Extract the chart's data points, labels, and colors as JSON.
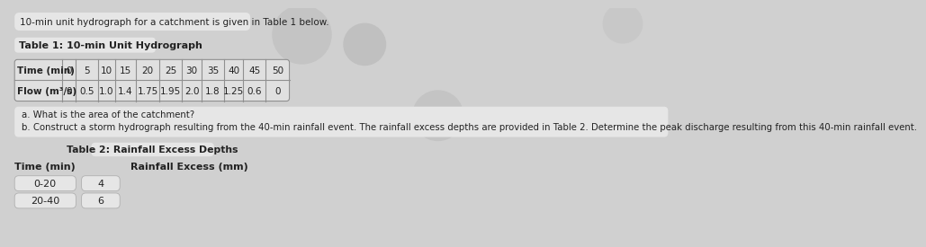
{
  "intro_text": "10-min unit hydrograph for a catchment is given in Table 1 below.",
  "table1_title": "Table 1: 10-min Unit Hydrograph",
  "time_label": "Time (min)",
  "flow_label": "Flow (m³/s)",
  "time_values": [
    "0",
    "5",
    "10",
    "15",
    "20",
    "25",
    "30",
    "35",
    "40",
    "45",
    "50"
  ],
  "flow_values": [
    "0",
    "0.5",
    "1.0",
    "1.4",
    "1.75",
    "1.95",
    "2.0",
    "1.8",
    "1.25",
    "0.6",
    "0"
  ],
  "question_a": "a. What is the area of the catchment?",
  "question_b": "b. Construct a storm hydrograph resulting from the 40-min rainfall event. The rainfall excess depths are provided in Table 2. Determine the peak discharge resulting from this 40-min rainfall event.",
  "table2_title": "Table 2: Rainfall Excess Depths",
  "time_col_label": "Time (min)",
  "rainfall_col_label": "Rainfall Excess (mm)",
  "time_intervals": [
    "0-20",
    "20-40"
  ],
  "rainfall_values": [
    "4",
    "6"
  ],
  "bg_color": "#d0d0d0",
  "box_color": "#e6e6e6",
  "table_bg": "#e0e0e0",
  "text_color": "#222222",
  "border_color": "#aaaaaa",
  "header_bg": "#d4d4d4",
  "circle_color1": "#c8c8c8",
  "circle_color2": "#bcbcbc"
}
